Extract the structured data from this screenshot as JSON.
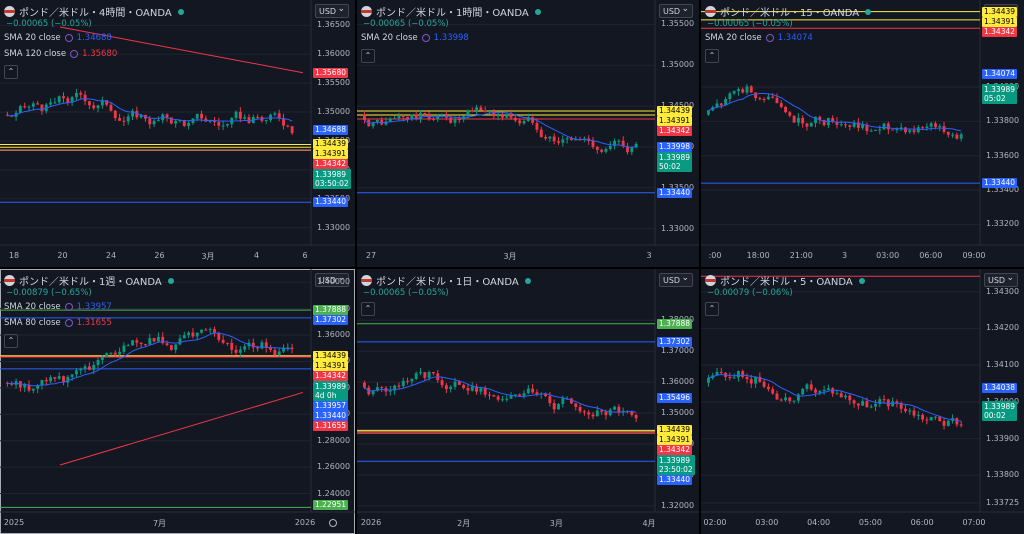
{
  "panels": [
    {
      "title": "ポンド／米ドル・4時間・OANDA",
      "change": "−0.00065 (−0.05%)",
      "currency": "USD",
      "selected": false,
      "indicators": [
        {
          "label": "SMA 20 close",
          "value": "1.34688",
          "color": "#2962ff"
        },
        {
          "label": "SMA 120 close",
          "value": "1.35680",
          "color": "#f23645"
        }
      ],
      "yticks": [
        "1.36500",
        "1.36000",
        "1.35500",
        "1.35000",
        "1.34500",
        "1.34000",
        "1.33500",
        "1.33000"
      ],
      "ymin": 1.327,
      "ymax": 1.368,
      "xticks": [
        "18",
        "20",
        "24",
        "26",
        "3月",
        "4",
        "6"
      ],
      "price_tags": [
        {
          "v": 1.3568,
          "t": "1.35680",
          "bg": "#f23645"
        },
        {
          "v": 1.34688,
          "t": "1.34688",
          "bg": "#2962ff"
        },
        {
          "v": 1.34439,
          "t": "1.34439",
          "bg": "#ffeb3b",
          "dark": true
        },
        {
          "v": 1.34391,
          "t": "1.34391",
          "bg": "#ffeb3b",
          "dark": true
        },
        {
          "v": 1.34342,
          "t": "1.34342",
          "bg": "#f23645"
        },
        {
          "v": 1.33989,
          "t": "1.33989",
          "t2": "03:50:02",
          "bg": "#089981"
        },
        {
          "v": 1.3344,
          "t": "1.33440",
          "bg": "#2962ff"
        }
      ],
      "hlines": [
        {
          "v": 1.34439,
          "c": "#ffeb3b"
        },
        {
          "v": 1.34391,
          "c": "#ffeb3b"
        },
        {
          "v": 1.34342,
          "c": "#f23645"
        },
        {
          "v": 1.34342,
          "c": "#f0a35e"
        },
        {
          "v": 1.3344,
          "c": "#2962ff"
        }
      ]
    },
    {
      "title": "ポンド／米ドル・1時間・OANDA",
      "change": "−0.00065 (−0.05%)",
      "currency": "USD",
      "selected": false,
      "indicators": [
        {
          "label": "SMA 20 close",
          "value": "1.33998",
          "color": "#2962ff"
        }
      ],
      "yticks": [
        "1.35500",
        "1.35000",
        "1.34500",
        "1.34000",
        "1.33500",
        "1.33000"
      ],
      "ymin": 1.328,
      "ymax": 1.357,
      "xticks": [
        "27",
        "3月",
        "3"
      ],
      "price_tags": [
        {
          "v": 1.34439,
          "t": "1.34439",
          "bg": "#ffeb3b",
          "dark": true
        },
        {
          "v": 1.34391,
          "t": "1.34391",
          "bg": "#ffeb3b",
          "dark": true
        },
        {
          "v": 1.34342,
          "t": "1.34342",
          "bg": "#f23645"
        },
        {
          "v": 1.33998,
          "t": "1.33998",
          "bg": "#2962ff"
        },
        {
          "v": 1.33989,
          "t": "1.33989",
          "t2": "50:02",
          "bg": "#089981"
        },
        {
          "v": 1.3344,
          "t": "1.33440",
          "bg": "#2962ff"
        }
      ],
      "hlines": [
        {
          "v": 1.34439,
          "c": "#ffeb3b"
        },
        {
          "v": 1.34391,
          "c": "#ffeb3b"
        },
        {
          "v": 1.34342,
          "c": "#f23645"
        },
        {
          "v": 1.3344,
          "c": "#2962ff"
        }
      ]
    },
    {
      "title": "ポンド／米ドル・15・OANDA",
      "change": "−0.00065 (−0.05%)",
      "currency": "USD",
      "selected": false,
      "indicators": [
        {
          "label": "SMA 20 close",
          "value": "1.34074",
          "color": "#2962ff"
        }
      ],
      "yticks": [
        "1.34000",
        "1.33800",
        "1.33600",
        "1.33400",
        "1.33200"
      ],
      "ymin": 1.3308,
      "ymax": 1.3446,
      "xticks": [
        ":00",
        "18:00",
        "21:00",
        "3",
        "03:00",
        "06:00",
        "09:00"
      ],
      "price_tags": [
        {
          "v": 1.34439,
          "t": "1.34439",
          "bg": "#ffeb3b",
          "dark": true
        },
        {
          "v": 1.34391,
          "t": "1.34391",
          "bg": "#ffeb3b",
          "dark": true
        },
        {
          "v": 1.34342,
          "t": "1.34342",
          "bg": "#f23645"
        },
        {
          "v": 1.34074,
          "t": "1.34074",
          "bg": "#2962ff"
        },
        {
          "v": 1.33989,
          "t": "1.33989",
          "t2": "05:02",
          "bg": "#089981"
        },
        {
          "v": 1.3344,
          "t": "1.33440",
          "bg": "#2962ff"
        }
      ],
      "hlines": [
        {
          "v": 1.34439,
          "c": "#ffeb3b"
        },
        {
          "v": 1.34391,
          "c": "#ffeb3b"
        },
        {
          "v": 1.34342,
          "c": "#f23645"
        },
        {
          "v": 1.3344,
          "c": "#2962ff"
        }
      ]
    },
    {
      "title": "ポンド／米ドル・1週・OANDA",
      "change": "−0.00879 (−0.65%)",
      "currency": "USD",
      "selected": true,
      "indicators": [
        {
          "label": "SMA 20 close",
          "value": "1.33957",
          "color": "#2962ff"
        },
        {
          "label": "SMA 80 close",
          "value": "1.31655",
          "color": "#f23645"
        }
      ],
      "yticks": [
        "1.40000",
        "1.38000",
        "1.36000",
        "1.34000",
        "1.32000",
        "1.30000",
        "1.28000",
        "1.26000",
        "1.24000"
      ],
      "ymin": 1.226,
      "ymax": 1.404,
      "xticks": [
        "2025",
        "7月",
        "2026"
      ],
      "price_tags": [
        {
          "v": 1.37888,
          "t": "1.37888",
          "bg": "#4caf50"
        },
        {
          "v": 1.37302,
          "t": "1.37302",
          "bg": "#2962ff"
        },
        {
          "v": 1.34439,
          "t": "1.34439",
          "bg": "#ffeb3b",
          "dark": true
        },
        {
          "v": 1.34391,
          "t": "1.34391",
          "bg": "#ffeb3b",
          "dark": true
        },
        {
          "v": 1.34342,
          "t": "1.34342",
          "bg": "#f23645"
        },
        {
          "v": 1.33989,
          "t": "1.33989",
          "t2": "4d 0h",
          "bg": "#089981"
        },
        {
          "v": 1.33957,
          "t": "1.33957",
          "bg": "#2962ff"
        },
        {
          "v": 1.3344,
          "t": "1.33440",
          "bg": "#2962ff"
        },
        {
          "v": 1.31655,
          "t": "1.31655",
          "bg": "#f23645"
        },
        {
          "v": 1.22951,
          "t": "1.22951",
          "bg": "#4caf50"
        }
      ],
      "hlines": [
        {
          "v": 1.37888,
          "c": "#4caf50"
        },
        {
          "v": 1.37302,
          "c": "#2962ff"
        },
        {
          "v": 1.34439,
          "c": "#ffeb3b"
        },
        {
          "v": 1.34391,
          "c": "#f0a35e"
        },
        {
          "v": 1.34342,
          "c": "#f23645"
        },
        {
          "v": 1.3344,
          "c": "#2962ff"
        },
        {
          "v": 1.22951,
          "c": "#4caf50"
        }
      ]
    },
    {
      "title": "ポンド／米ドル・1日・OANDA",
      "change": "−0.00065 (−0.05%)",
      "currency": "USD",
      "selected": false,
      "indicators": [],
      "yticks": [
        "1.38000",
        "1.37000",
        "1.36000",
        "1.35000",
        "1.34000",
        "1.33000",
        "1.32000"
      ],
      "ymin": 1.318,
      "ymax": 1.394,
      "xticks": [
        "2026",
        "2月",
        "3月",
        "4月"
      ],
      "price_tags": [
        {
          "v": 1.37888,
          "t": "1.37888",
          "bg": "#4caf50"
        },
        {
          "v": 1.37302,
          "t": "1.37302",
          "bg": "#2962ff"
        },
        {
          "v": 1.35496,
          "t": "1.35496",
          "bg": "#2962ff"
        },
        {
          "v": 1.34439,
          "t": "1.34439",
          "bg": "#ffeb3b",
          "dark": true
        },
        {
          "v": 1.34391,
          "t": "1.34391",
          "bg": "#ffeb3b",
          "dark": true
        },
        {
          "v": 1.34342,
          "t": "1.34342",
          "bg": "#f23645"
        },
        {
          "v": 1.33989,
          "t": "1.33989",
          "t2": "23:50:02",
          "bg": "#089981"
        },
        {
          "v": 1.3344,
          "t": "1.33440",
          "bg": "#2962ff"
        }
      ],
      "hlines": [
        {
          "v": 1.37888,
          "c": "#4caf50"
        },
        {
          "v": 1.37302,
          "c": "#2962ff"
        },
        {
          "v": 1.34439,
          "c": "#ffeb3b"
        },
        {
          "v": 1.34391,
          "c": "#f0a35e"
        },
        {
          "v": 1.34342,
          "c": "#f23645"
        },
        {
          "v": 1.3344,
          "c": "#2962ff"
        }
      ]
    },
    {
      "title": "ポンド／米ドル・5・OANDA",
      "change": "−0.00079 (−0.06%)",
      "currency": "USD",
      "selected": false,
      "indicators": [],
      "yticks": [
        "1.34300",
        "1.34200",
        "1.34100",
        "1.34000",
        "1.33900",
        "1.33800",
        "1.33725"
      ],
      "ymin": 1.337,
      "ymax": 1.3434,
      "xticks": [
        "02:00",
        "03:00",
        "04:00",
        "05:00",
        "06:00",
        "07:00"
      ],
      "price_tags": [
        {
          "v": 1.34038,
          "t": "1.34038",
          "bg": "#2962ff"
        },
        {
          "v": 1.33989,
          "t": "1.33989",
          "t2": "00:02",
          "bg": "#089981"
        }
      ],
      "hlines": [
        {
          "v": 1.34342,
          "c": "#f23645"
        }
      ]
    }
  ]
}
